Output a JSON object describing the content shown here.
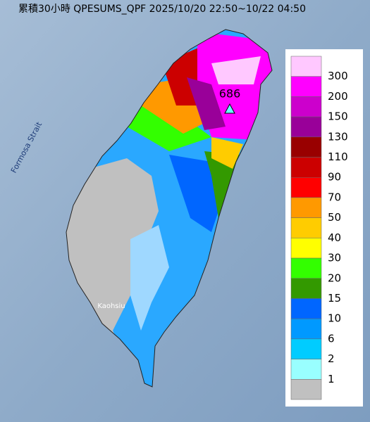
{
  "header": {
    "title": "累積30小時 QPESUMS_QPF 2025/10/20 22:50~10/22 04:50"
  },
  "map": {
    "labels": [
      "Formosa Strait",
      "Kaohsiu"
    ],
    "max_label": "686"
  },
  "legend": {
    "labels": [
      300,
      200,
      150,
      130,
      110,
      90,
      70,
      50,
      40,
      30,
      20,
      15,
      10,
      6,
      2,
      1
    ],
    "colors": [
      "#ffc8ff",
      "#ff00ff",
      "#cc00cc",
      "#990099",
      "#990000",
      "#cc0000",
      "#ff0000",
      "#ff9900",
      "#ffcc00",
      "#ffff00",
      "#33ff00",
      "#339900",
      "#0066ff",
      "#0099ff",
      "#00ccff",
      "#99ffff",
      "#c0c0c0"
    ]
  }
}
